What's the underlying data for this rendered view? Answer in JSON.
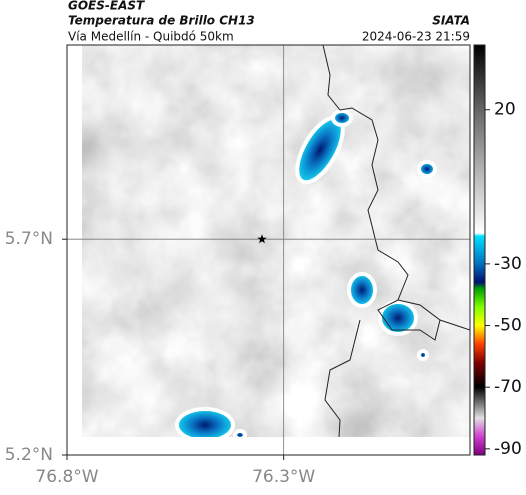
{
  "header": {
    "title": "GOES-EAST",
    "subtitle": "Temperatura de Brillo CH13",
    "region": "Vía Medellín - Quibdó 50km",
    "source": "SIATA",
    "datetime": "2024-06-23 21:59"
  },
  "map": {
    "xlim": [
      -76.8,
      -75.87
    ],
    "ylim": [
      5.2,
      6.15
    ],
    "xticks": [
      {
        "value": -76.8,
        "label": "76.8°W"
      },
      {
        "value": -76.3,
        "label": "76.3°W"
      }
    ],
    "yticks": [
      {
        "value": 5.2,
        "label": "5.2°N"
      },
      {
        "value": 5.7,
        "label": "5.7°N"
      }
    ],
    "grid": true,
    "marker": {
      "lon": -76.35,
      "lat": 5.7
    }
  },
  "colorbar": {
    "clim": [
      -92,
      41
    ],
    "ticks": [
      20,
      -30,
      -50,
      -70,
      -90
    ],
    "stops": [
      {
        "value": 41,
        "color": "#000000"
      },
      {
        "value": 20,
        "color": "#666666"
      },
      {
        "value": 0,
        "color": "#b4b4b4"
      },
      {
        "value": -20,
        "color": "#ffffff"
      },
      {
        "value": -21,
        "color": "#00e0ff"
      },
      {
        "value": -30,
        "color": "#0070c0"
      },
      {
        "value": -36,
        "color": "#001070"
      },
      {
        "value": -38,
        "color": "#00a000"
      },
      {
        "value": -44,
        "color": "#80ff00"
      },
      {
        "value": -50,
        "color": "#ffff00"
      },
      {
        "value": -56,
        "color": "#ff4000"
      },
      {
        "value": -62,
        "color": "#800000"
      },
      {
        "value": -70,
        "color": "#000000"
      },
      {
        "value": -80,
        "color": "#e0e0e0"
      },
      {
        "value": -86,
        "color": "#d040d0"
      },
      {
        "value": -92,
        "color": "#800080"
      }
    ]
  }
}
